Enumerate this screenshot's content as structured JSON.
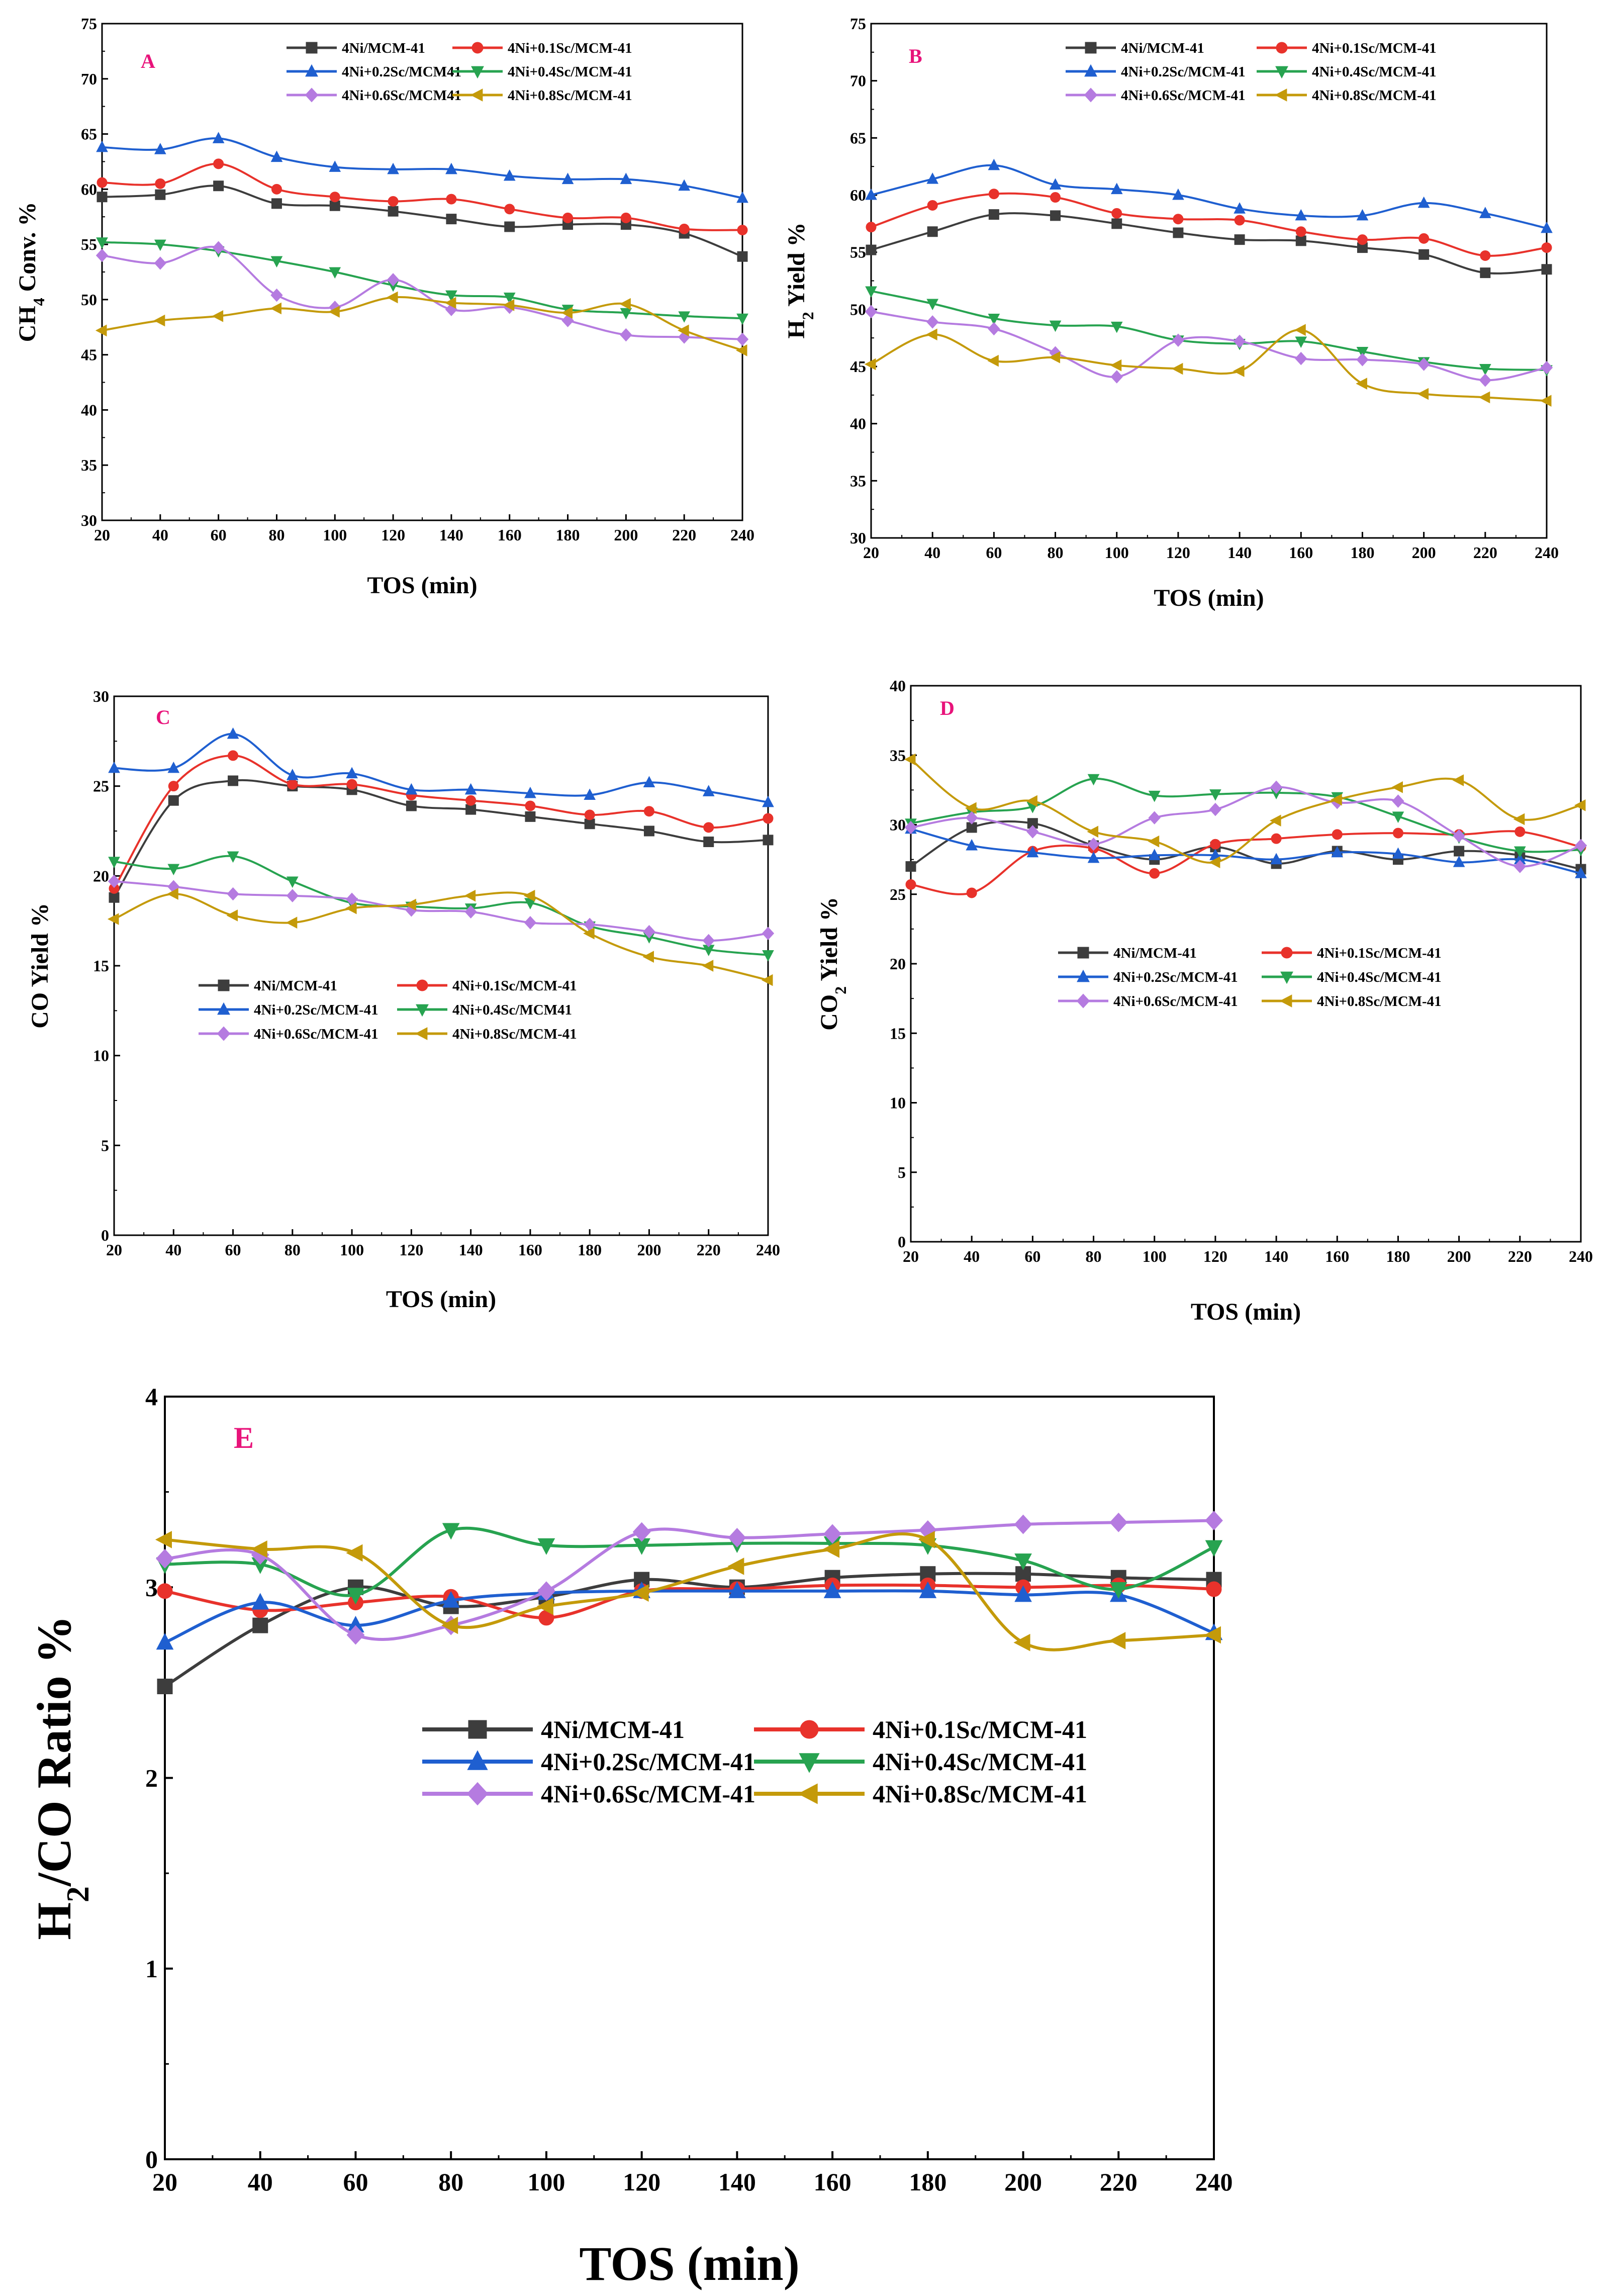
{
  "colors": {
    "s1": "#3d3d3d",
    "s2": "#e8322b",
    "s3": "#1f5fd0",
    "s4": "#27a350",
    "s5": "#b57be0",
    "s6": "#c49a0a",
    "panel_label": "#e8137a"
  },
  "series_names": [
    "4Ni/MCM-41",
    "4Ni+0.1Sc/MCM-41",
    "4Ni+0.2Sc/MCM41",
    "4Ni+0.4Sc/MCM-41",
    "4Ni+0.6Sc/MCM41",
    "4Ni+0.8Sc/MCM-41"
  ],
  "chart_data": [
    {
      "panel": "A",
      "type": "line",
      "xlabel": "TOS (min)",
      "ylabel_main": "CH",
      "ylabel_sub": "4",
      "ylabel_rest": " Conv. %",
      "x": [
        20,
        40,
        60,
        80,
        100,
        120,
        140,
        160,
        180,
        200,
        220,
        240
      ],
      "xlim": [
        20,
        240
      ],
      "ylim": [
        30,
        75
      ],
      "xticks": [
        20,
        40,
        60,
        80,
        100,
        120,
        140,
        160,
        180,
        200,
        220,
        240
      ],
      "yticks": [
        30,
        35,
        40,
        45,
        50,
        55,
        60,
        65,
        70,
        75
      ],
      "legend": [
        "4Ni/MCM-41",
        "4Ni+0.1Sc/MCM-41",
        "4Ni+0.2Sc/MCM41",
        "4Ni+0.4Sc/MCM-41",
        "4Ni+0.6Sc/MCM41",
        "4Ni+0.8Sc/MCM-41"
      ],
      "series": [
        {
          "name": "4Ni/MCM-41",
          "values": [
            59.3,
            59.5,
            60.3,
            58.7,
            58.5,
            58.0,
            57.3,
            56.6,
            56.8,
            56.8,
            56.0,
            53.9
          ]
        },
        {
          "name": "4Ni+0.1Sc/MCM-41",
          "values": [
            60.6,
            60.5,
            62.3,
            60.0,
            59.3,
            58.9,
            59.1,
            58.2,
            57.4,
            57.4,
            56.4,
            56.3
          ]
        },
        {
          "name": "4Ni+0.2Sc/MCM41",
          "values": [
            63.8,
            63.6,
            64.6,
            62.9,
            62.0,
            61.8,
            61.8,
            61.2,
            60.9,
            60.9,
            60.3,
            59.2
          ]
        },
        {
          "name": "4Ni+0.4Sc/MCM-41",
          "values": [
            55.2,
            55.0,
            54.4,
            53.5,
            52.5,
            51.3,
            50.4,
            50.2,
            49.1,
            48.8,
            48.5,
            48.3
          ]
        },
        {
          "name": "4Ni+0.6Sc/MCM41",
          "values": [
            54.0,
            53.3,
            54.7,
            50.4,
            49.3,
            51.8,
            49.1,
            49.3,
            48.1,
            46.8,
            46.6,
            46.4
          ]
        },
        {
          "name": "4Ni+0.8Sc/MCM-41",
          "values": [
            47.2,
            48.1,
            48.5,
            49.2,
            48.9,
            50.2,
            49.7,
            49.5,
            48.8,
            49.6,
            47.2,
            45.4
          ]
        }
      ]
    },
    {
      "panel": "B",
      "type": "line",
      "xlabel": "TOS (min)",
      "ylabel_main": "H",
      "ylabel_sub": "2",
      "ylabel_rest": " Yield %",
      "x": [
        20,
        40,
        60,
        80,
        100,
        120,
        140,
        160,
        180,
        200,
        220,
        240
      ],
      "xlim": [
        20,
        240
      ],
      "ylim": [
        30,
        75
      ],
      "xticks": [
        20,
        40,
        60,
        80,
        100,
        120,
        140,
        160,
        180,
        200,
        220,
        240
      ],
      "yticks": [
        30,
        35,
        40,
        45,
        50,
        55,
        60,
        65,
        70,
        75
      ],
      "legend": [
        "4Ni/MCM-41",
        "4Ni+0.1Sc/MCM-41",
        "4Ni+0.2Sc/MCM-41",
        "4Ni+0.4Sc/MCM-41",
        "4Ni+0.6Sc/MCM-41",
        "4Ni+0.8Sc/MCM-41"
      ],
      "series": [
        {
          "name": "4Ni/MCM-41",
          "values": [
            55.2,
            56.8,
            58.3,
            58.2,
            57.5,
            56.7,
            56.1,
            56.0,
            55.4,
            54.8,
            53.2,
            53.5
          ]
        },
        {
          "name": "4Ni+0.1Sc/MCM-41",
          "values": [
            57.2,
            59.1,
            60.1,
            59.8,
            58.4,
            57.9,
            57.8,
            56.8,
            56.1,
            56.2,
            54.7,
            55.4
          ]
        },
        {
          "name": "4Ni+0.2Sc/MCM-41",
          "values": [
            60.0,
            61.4,
            62.6,
            60.9,
            60.5,
            60.0,
            58.8,
            58.2,
            58.2,
            59.3,
            58.4,
            57.1
          ]
        },
        {
          "name": "4Ni+0.4Sc/MCM-41",
          "values": [
            51.6,
            50.5,
            49.2,
            48.6,
            48.5,
            47.3,
            47.0,
            47.2,
            46.3,
            45.4,
            44.8,
            44.7
          ]
        },
        {
          "name": "4Ni+0.6Sc/MCM-41",
          "values": [
            49.8,
            48.9,
            48.3,
            46.2,
            44.1,
            47.3,
            47.2,
            45.7,
            45.6,
            45.2,
            43.8,
            44.9
          ]
        },
        {
          "name": "4Ni+0.8Sc/MCM-41",
          "values": [
            45.2,
            47.8,
            45.5,
            45.8,
            45.1,
            44.8,
            44.6,
            48.2,
            43.5,
            42.6,
            42.3,
            42.0
          ]
        }
      ]
    },
    {
      "panel": "C",
      "type": "line",
      "xlabel": "TOS (min)",
      "ylabel_main": "CO Yield %",
      "ylabel_sub": "",
      "ylabel_rest": "",
      "x": [
        20,
        40,
        60,
        80,
        100,
        120,
        140,
        160,
        180,
        200,
        220,
        240
      ],
      "xlim": [
        20,
        240
      ],
      "ylim": [
        0,
        30
      ],
      "xticks": [
        20,
        40,
        60,
        80,
        100,
        120,
        140,
        160,
        180,
        200,
        220,
        240
      ],
      "yticks": [
        0,
        5,
        10,
        15,
        20,
        25,
        30
      ],
      "legend": [
        "4Ni/MCM-41",
        "4Ni+0.1Sc/MCM-41",
        "4Ni+0.2Sc/MCM-41",
        "4Ni+0.4Sc/MCM41",
        "4Ni+0.6Sc/MCM-41",
        "4Ni+0.8Sc/MCM-41"
      ],
      "series": [
        {
          "name": "4Ni/MCM-41",
          "values": [
            18.8,
            24.2,
            25.3,
            25.0,
            24.8,
            23.9,
            23.7,
            23.3,
            22.9,
            22.5,
            21.9,
            22.0
          ]
        },
        {
          "name": "4Ni+0.1Sc/MCM-41",
          "values": [
            19.3,
            25.0,
            26.7,
            25.1,
            25.1,
            24.5,
            24.2,
            23.9,
            23.4,
            23.6,
            22.7,
            23.2
          ]
        },
        {
          "name": "4Ni+0.2Sc/MCM-41",
          "values": [
            26.0,
            26.0,
            27.9,
            25.6,
            25.7,
            24.8,
            24.8,
            24.6,
            24.5,
            25.2,
            24.7,
            24.1
          ]
        },
        {
          "name": "4Ni+0.4Sc/MCM41",
          "values": [
            20.8,
            20.4,
            21.1,
            19.7,
            18.5,
            18.3,
            18.2,
            18.5,
            17.2,
            16.6,
            15.9,
            15.6
          ]
        },
        {
          "name": "4Ni+0.6Sc/MCM-41",
          "values": [
            19.7,
            19.4,
            19.0,
            18.9,
            18.7,
            18.1,
            18.0,
            17.4,
            17.3,
            16.9,
            16.4,
            16.8
          ]
        },
        {
          "name": "4Ni+0.8Sc/MCM-41",
          "values": [
            17.6,
            19.0,
            17.8,
            17.4,
            18.2,
            18.4,
            18.9,
            18.9,
            16.8,
            15.5,
            15.0,
            14.2
          ]
        }
      ]
    },
    {
      "panel": "D",
      "type": "line",
      "xlabel": "TOS (min)",
      "ylabel_main": "CO",
      "ylabel_sub": "2",
      "ylabel_rest": " Yield %",
      "x": [
        20,
        40,
        60,
        80,
        100,
        120,
        140,
        160,
        180,
        200,
        220,
        240
      ],
      "xlim": [
        20,
        240
      ],
      "ylim": [
        0,
        40
      ],
      "xticks": [
        20,
        40,
        60,
        80,
        100,
        120,
        140,
        160,
        180,
        200,
        220,
        240
      ],
      "yticks": [
        0,
        5,
        10,
        15,
        20,
        25,
        30,
        35,
        40
      ],
      "legend": [
        "4Ni/MCM-41",
        "4Ni+0.1Sc/MCM-41",
        "4Ni+0.2Sc/MCM-41",
        "4Ni+0.4Sc/MCM-41",
        "4Ni+0.6Sc/MCM-41",
        "4Ni+0.8Sc/MCM-41"
      ],
      "series": [
        {
          "name": "4Ni/MCM-41",
          "values": [
            27.0,
            29.8,
            30.1,
            28.5,
            27.5,
            28.4,
            27.2,
            28.1,
            27.5,
            28.1,
            27.8,
            26.8
          ]
        },
        {
          "name": "4Ni+0.1Sc/MCM-41",
          "values": [
            25.7,
            25.1,
            28.1,
            28.3,
            26.5,
            28.6,
            29.0,
            29.3,
            29.4,
            29.3,
            29.5,
            28.4
          ]
        },
        {
          "name": "4Ni+0.2Sc/MCM-41",
          "values": [
            29.7,
            28.5,
            28.0,
            27.6,
            27.8,
            27.8,
            27.5,
            28.0,
            27.9,
            27.3,
            27.5,
            26.5
          ]
        },
        {
          "name": "4Ni+0.4Sc/MCM-41",
          "values": [
            30.1,
            30.9,
            31.3,
            33.3,
            32.1,
            32.2,
            32.3,
            32.0,
            30.6,
            29.1,
            28.1,
            28.2
          ]
        },
        {
          "name": "4Ni+0.6Sc/MCM-41",
          "values": [
            29.8,
            30.5,
            29.5,
            28.6,
            30.5,
            31.1,
            32.7,
            31.6,
            31.7,
            29.2,
            27.0,
            28.5
          ]
        },
        {
          "name": "4Ni+0.8Sc/MCM-41",
          "values": [
            34.7,
            31.2,
            31.7,
            29.5,
            28.8,
            27.3,
            30.3,
            31.8,
            32.7,
            33.2,
            30.4,
            31.4
          ]
        }
      ]
    },
    {
      "panel": "E",
      "type": "line",
      "xlabel": "TOS (min)",
      "ylabel_main": "H",
      "ylabel_sub": "2",
      "ylabel_rest": "/CO Ratio %",
      "x": [
        20,
        40,
        60,
        80,
        100,
        120,
        140,
        160,
        180,
        200,
        220,
        240
      ],
      "xlim": [
        20,
        240
      ],
      "ylim": [
        0,
        4
      ],
      "xticks": [
        20,
        40,
        60,
        80,
        100,
        120,
        140,
        160,
        180,
        200,
        220,
        240
      ],
      "yticks": [
        0,
        1,
        2,
        3,
        4
      ],
      "legend": [
        "4Ni/MCM-41",
        "4Ni+0.1Sc/MCM-41",
        "4Ni+0.2Sc/MCM-41",
        "4Ni+0.4Sc/MCM-41",
        "4Ni+0.6Sc/MCM-41",
        "4Ni+0.8Sc/MCM-41"
      ],
      "series": [
        {
          "name": "4Ni/MCM-41",
          "values": [
            2.48,
            2.8,
            3.0,
            2.9,
            2.95,
            3.04,
            3.0,
            3.05,
            3.07,
            3.07,
            3.05,
            3.04
          ]
        },
        {
          "name": "4Ni+0.1Sc/MCM-41",
          "values": [
            2.98,
            2.88,
            2.92,
            2.95,
            2.84,
            2.98,
            2.99,
            3.01,
            3.01,
            3.0,
            3.01,
            2.99
          ]
        },
        {
          "name": "4Ni+0.2Sc/MCM-41",
          "values": [
            2.71,
            2.92,
            2.8,
            2.93,
            2.97,
            2.98,
            2.98,
            2.98,
            2.98,
            2.96,
            2.96,
            2.76
          ]
        },
        {
          "name": "4Ni+0.4Sc/MCM-41",
          "values": [
            3.12,
            3.12,
            2.96,
            3.3,
            3.22,
            3.22,
            3.23,
            3.23,
            3.22,
            3.14,
            2.99,
            3.21
          ]
        },
        {
          "name": "4Ni+0.6Sc/MCM-41",
          "values": [
            3.15,
            3.17,
            2.75,
            2.8,
            2.98,
            3.29,
            3.26,
            3.28,
            3.3,
            3.33,
            3.34,
            3.35
          ]
        },
        {
          "name": "4Ni+0.8Sc/MCM-41",
          "values": [
            3.25,
            3.2,
            3.18,
            2.8,
            2.9,
            2.97,
            3.11,
            3.2,
            3.25,
            2.71,
            2.72,
            2.75
          ]
        }
      ]
    }
  ]
}
